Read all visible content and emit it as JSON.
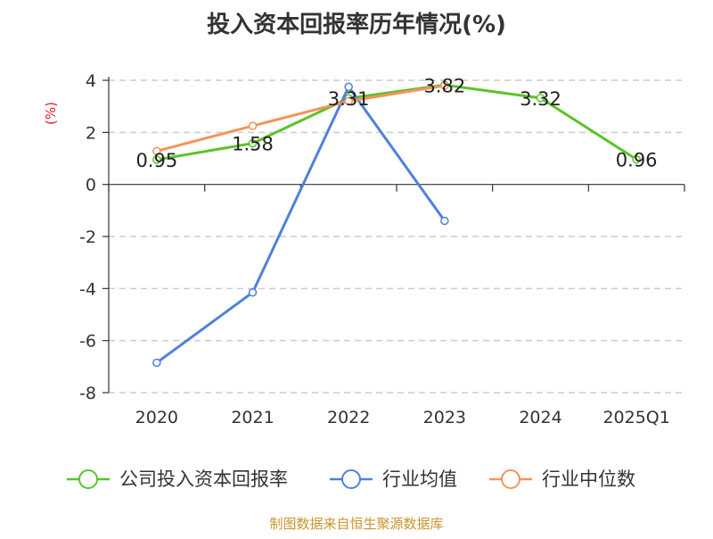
{
  "chart_data": {
    "type": "line",
    "title": "投入资本回报率历年情况(%)",
    "ylabel": "(%)",
    "xlabel": "",
    "categories": [
      "2020",
      "2021",
      "2022",
      "2023",
      "2024",
      "2025Q1"
    ],
    "ylim": [
      -8,
      4
    ],
    "yticks": [
      4,
      2,
      0,
      -2,
      -4,
      -6,
      -8
    ],
    "grid": true,
    "legend_position": "bottom",
    "series": [
      {
        "name": "公司投入资本回报率",
        "color": "#5bc32a",
        "values": [
          0.95,
          1.58,
          3.31,
          3.82,
          3.32,
          0.96
        ],
        "labels": [
          "0.95",
          "1.58",
          "3.31",
          "3.82",
          "3.32",
          "0.96"
        ]
      },
      {
        "name": "行业均值",
        "color": "#4f81dc",
        "values": [
          -6.85,
          -4.15,
          3.75,
          -1.4,
          null,
          null
        ]
      },
      {
        "name": "行业中位数",
        "color": "#f5935a",
        "values": [
          1.28,
          2.25,
          3.2,
          3.8,
          null,
          null
        ]
      }
    ]
  },
  "footer": {
    "source": "制图数据来自恒生聚源数据库"
  }
}
